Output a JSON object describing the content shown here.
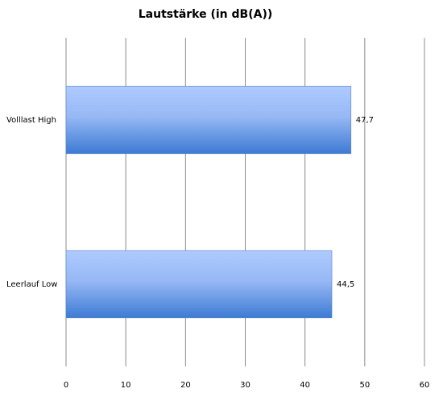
{
  "chart_data": {
    "type": "bar",
    "orientation": "horizontal",
    "title": "Lautstärke (in dB(A))",
    "categories": [
      "Volllast High",
      "Leerlauf Low"
    ],
    "values": [
      47.7,
      44.5
    ],
    "value_labels": [
      "47,7",
      "44,5"
    ],
    "color": "#3d7bd3",
    "xlim": [
      0,
      60
    ],
    "xticks": [
      0,
      10,
      20,
      30,
      40,
      50,
      60
    ],
    "grid": true
  }
}
